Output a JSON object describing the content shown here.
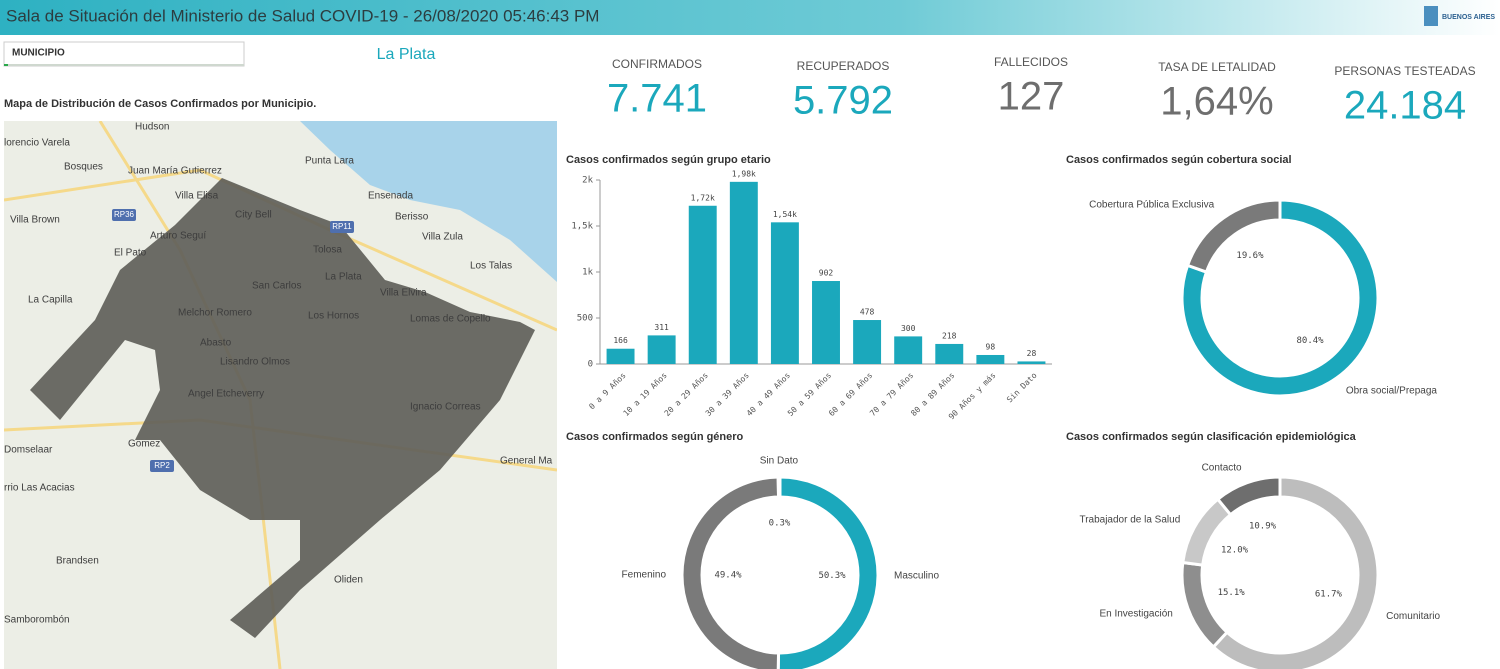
{
  "header": {
    "title": "Sala de Situación del Ministerio de Salud COVID-19 - 26/08/2020 05:46:43 PM",
    "logo": "BUENOS AIRES"
  },
  "filter": {
    "label": "MUNICIPIO",
    "selected": "La Plata"
  },
  "map": {
    "title": "Mapa de Distribución de Casos Confirmados por Municipio.",
    "places": [
      "Hudson",
      "lorencio Varela",
      "Bosques",
      "Juan María Gutierrez",
      "Villa Elisa",
      "Punta Lara",
      "City Bell",
      "Ensenada",
      "Berisso",
      "Villa Brown",
      "Arturo Seguí",
      "El Pato",
      "Tolosa",
      "Villa Zula",
      "Los Talas",
      "La Plata",
      "San Carlos",
      "Villa Elvira",
      "La Capilla",
      "Melchor Romero",
      "Los Hornos",
      "Lomas de Copello",
      "Abasto",
      "Lisandro Olmos",
      "Angel Etcheverry",
      "Ignacio Correas",
      "Gomez",
      "General Ma",
      "Domselaar",
      "rrio Las Acacias",
      "Brandsen",
      "Oliden",
      "Samborombón"
    ],
    "roads": [
      "RP36",
      "RP11",
      "RP2"
    ]
  },
  "kpis": [
    {
      "label": "CONFIRMADOS",
      "value": "7.741",
      "color": "#1ba8bc"
    },
    {
      "label": "RECUPERADOS",
      "value": "5.792",
      "color": "#1ba8bc"
    },
    {
      "label": "FALLECIDOS",
      "value": "127",
      "color": "#6e6e6e"
    },
    {
      "label": "TASA DE LETALIDAD",
      "value": "1,64%",
      "color": "#6e6e6e"
    },
    {
      "label": "PERSONAS TESTEADAS",
      "value": "24.184",
      "color": "#1ba8bc"
    }
  ],
  "chart_data": [
    {
      "type": "bar",
      "title": "Casos confirmados según grupo etario",
      "categories": [
        "0 a 9 Años",
        "10 a 19 Años",
        "20 a 29 Años",
        "30 a 39 Años",
        "40 a 49 Años",
        "50 a 59 Años",
        "60 a 69 Años",
        "70 a 79 Años",
        "80 a 89 Años",
        "90 Años y más",
        "Sin Dato"
      ],
      "values": [
        166,
        311,
        1720,
        1980,
        1540,
        902,
        478,
        300,
        218,
        98,
        28
      ],
      "value_labels": [
        "166",
        "311",
        "1,72k",
        "1,98k",
        "1,54k",
        "902",
        "478",
        "300",
        "218",
        "98",
        "28"
      ],
      "color": "#1ba8bc",
      "ylim": [
        0,
        2000
      ],
      "yticks": [
        0,
        500,
        {
          "value": 1000,
          "label": "1k"
        },
        {
          "value": 1500,
          "label": "1,5k"
        },
        {
          "value": 2000,
          "label": "2k"
        }
      ]
    },
    {
      "type": "donut",
      "title": "Casos confirmados según cobertura social",
      "categories": [
        "Obra social/Prepaga",
        "Cobertura Pública Exclusiva"
      ],
      "values": [
        80.4,
        19.6
      ],
      "value_labels": [
        "80.4%",
        "19.6%"
      ],
      "colors": [
        "#1ba8bc",
        "#7a7a7a"
      ]
    },
    {
      "type": "donut",
      "title": "Casos confirmados según género",
      "categories": [
        "Masculino",
        "Femenino",
        "Sin Dato"
      ],
      "values": [
        50.3,
        49.4,
        0.3
      ],
      "value_labels": [
        "50.3%",
        "49.4%",
        "0.3%"
      ],
      "colors": [
        "#1ba8bc",
        "#7a7a7a",
        "#b5b5b5"
      ]
    },
    {
      "type": "donut",
      "title": "Casos confirmados según clasificación epidemiológica",
      "categories": [
        "Comunitario",
        "En Investigación",
        "Trabajador de la Salud",
        "Contacto"
      ],
      "values": [
        61.7,
        15.1,
        12.0,
        10.9
      ],
      "value_labels": [
        "61.7%",
        "15.1%",
        "12.0%",
        "10.9%"
      ],
      "colors": [
        "#bdbdbd",
        "#8e8e8e",
        "#c8c8c8",
        "#6e6e6e"
      ]
    }
  ]
}
